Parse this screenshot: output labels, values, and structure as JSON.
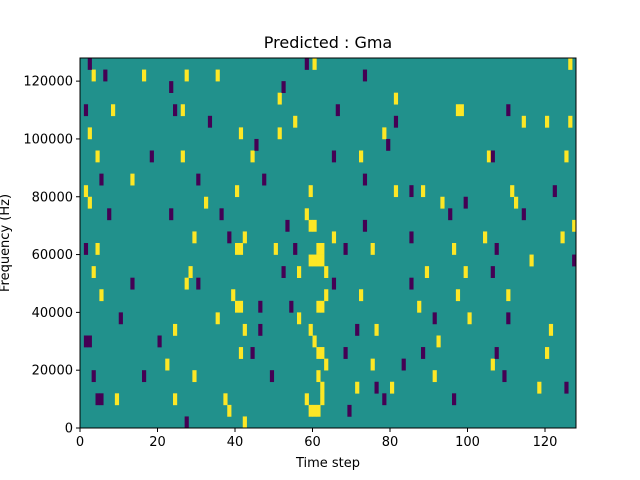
{
  "chart_data": {
    "type": "heatmap",
    "title": "Predicted : Gma",
    "xlabel": "Time step",
    "ylabel": "Frequency (Hz)",
    "xlim": [
      0,
      128
    ],
    "ylim": [
      0,
      128000
    ],
    "x_ticks": [
      0,
      20,
      40,
      60,
      80,
      100,
      120
    ],
    "y_ticks": [
      0,
      20000,
      40000,
      60000,
      80000,
      100000,
      120000
    ],
    "x_tick_labels": [
      "0",
      "20",
      "40",
      "60",
      "80",
      "100",
      "120"
    ],
    "y_tick_labels": [
      "0",
      "20000",
      "40000",
      "60000",
      "80000",
      "100000",
      "120000"
    ],
    "grid": false,
    "bin_height": 4000,
    "colors": {
      "background": "#21918c",
      "high": "#fde725",
      "low": "#440154"
    },
    "cell_values": {
      "background": 0,
      "high": 1,
      "low": -1
    },
    "high_cells": [
      [
        3,
        120000
      ],
      [
        16,
        120000
      ],
      [
        27,
        120000
      ],
      [
        35,
        120000
      ],
      [
        60,
        124000
      ],
      [
        126,
        124000
      ],
      [
        8,
        108000
      ],
      [
        26,
        108000
      ],
      [
        51,
        112000
      ],
      [
        81,
        112000
      ],
      [
        97,
        108000
      ],
      [
        2,
        100000
      ],
      [
        41,
        100000
      ],
      [
        51,
        100000
      ],
      [
        55,
        104000
      ],
      [
        78,
        100000
      ],
      [
        98,
        108000
      ],
      [
        114,
        104000
      ],
      [
        120,
        104000
      ],
      [
        126,
        104000
      ],
      [
        4,
        92000
      ],
      [
        26,
        92000
      ],
      [
        44,
        92000
      ],
      [
        72,
        92000
      ],
      [
        105,
        92000
      ],
      [
        1,
        80000
      ],
      [
        13,
        84000
      ],
      [
        40,
        80000
      ],
      [
        59,
        80000
      ],
      [
        81,
        80000
      ],
      [
        88,
        80000
      ],
      [
        111,
        80000
      ],
      [
        2,
        76000
      ],
      [
        32,
        76000
      ],
      [
        42,
        64000
      ],
      [
        58,
        72000
      ],
      [
        59,
        68000
      ],
      [
        60,
        68000
      ],
      [
        61,
        60000
      ],
      [
        62,
        60000
      ],
      [
        93,
        76000
      ],
      [
        112,
        76000
      ],
      [
        4,
        60000
      ],
      [
        29,
        64000
      ],
      [
        40,
        60000
      ],
      [
        41,
        60000
      ],
      [
        50,
        60000
      ],
      [
        65,
        64000
      ],
      [
        75,
        60000
      ],
      [
        96,
        60000
      ],
      [
        104,
        64000
      ],
      [
        124,
        64000
      ],
      [
        3,
        52000
      ],
      [
        28,
        52000
      ],
      [
        56,
        52000
      ],
      [
        59,
        56000
      ],
      [
        60,
        56000
      ],
      [
        61,
        56000
      ],
      [
        62,
        56000
      ],
      [
        63,
        52000
      ],
      [
        89,
        52000
      ],
      [
        99,
        52000
      ],
      [
        116,
        56000
      ],
      [
        5,
        44000
      ],
      [
        27,
        48000
      ],
      [
        39,
        44000
      ],
      [
        40,
        40000
      ],
      [
        41,
        40000
      ],
      [
        61,
        40000
      ],
      [
        62,
        40000
      ],
      [
        63,
        44000
      ],
      [
        72,
        44000
      ],
      [
        97,
        44000
      ],
      [
        110,
        44000
      ],
      [
        24,
        32000
      ],
      [
        35,
        36000
      ],
      [
        42,
        32000
      ],
      [
        59,
        32000
      ],
      [
        60,
        28000
      ],
      [
        61,
        24000
      ],
      [
        62,
        24000
      ],
      [
        63,
        20000
      ],
      [
        76,
        32000
      ],
      [
        87,
        40000
      ],
      [
        100,
        36000
      ],
      [
        121,
        32000
      ],
      [
        22,
        20000
      ],
      [
        41,
        24000
      ],
      [
        61,
        16000
      ],
      [
        62,
        12000
      ],
      [
        75,
        20000
      ],
      [
        91,
        16000
      ],
      [
        106,
        20000
      ],
      [
        120,
        24000
      ],
      [
        9,
        8000
      ],
      [
        24,
        8000
      ],
      [
        37,
        8000
      ],
      [
        38,
        4000
      ],
      [
        42,
        0
      ],
      [
        58,
        8000
      ],
      [
        59,
        4000
      ],
      [
        60,
        4000
      ],
      [
        61,
        4000
      ],
      [
        62,
        8000
      ],
      [
        71,
        12000
      ],
      [
        80,
        12000
      ],
      [
        118,
        12000
      ],
      [
        125,
        92000
      ],
      [
        127,
        68000
      ],
      [
        29,
        16000
      ],
      [
        56,
        36000
      ],
      [
        92,
        28000
      ]
    ],
    "low_cells": [
      [
        2,
        124000
      ],
      [
        6,
        120000
      ],
      [
        23,
        116000
      ],
      [
        52,
        116000
      ],
      [
        58,
        124000
      ],
      [
        73,
        120000
      ],
      [
        1,
        108000
      ],
      [
        24,
        108000
      ],
      [
        33,
        104000
      ],
      [
        66,
        108000
      ],
      [
        81,
        104000
      ],
      [
        110,
        108000
      ],
      [
        18,
        92000
      ],
      [
        45,
        96000
      ],
      [
        65,
        92000
      ],
      [
        79,
        96000
      ],
      [
        106,
        92000
      ],
      [
        5,
        84000
      ],
      [
        30,
        84000
      ],
      [
        47,
        84000
      ],
      [
        73,
        84000
      ],
      [
        85,
        80000
      ],
      [
        99,
        76000
      ],
      [
        122,
        80000
      ],
      [
        7,
        72000
      ],
      [
        23,
        72000
      ],
      [
        36,
        72000
      ],
      [
        53,
        68000
      ],
      [
        73,
        68000
      ],
      [
        95,
        72000
      ],
      [
        114,
        72000
      ],
      [
        1,
        60000
      ],
      [
        38,
        64000
      ],
      [
        55,
        60000
      ],
      [
        68,
        60000
      ],
      [
        85,
        64000
      ],
      [
        107,
        60000
      ],
      [
        127,
        56000
      ],
      [
        13,
        48000
      ],
      [
        30,
        48000
      ],
      [
        52,
        52000
      ],
      [
        65,
        48000
      ],
      [
        85,
        48000
      ],
      [
        106,
        52000
      ],
      [
        10,
        36000
      ],
      [
        46,
        40000
      ],
      [
        54,
        40000
      ],
      [
        71,
        32000
      ],
      [
        91,
        36000
      ],
      [
        110,
        36000
      ],
      [
        1,
        28000
      ],
      [
        2,
        28000
      ],
      [
        20,
        28000
      ],
      [
        46,
        32000
      ],
      [
        68,
        24000
      ],
      [
        83,
        20000
      ],
      [
        107,
        24000
      ],
      [
        3,
        16000
      ],
      [
        16,
        16000
      ],
      [
        44,
        24000
      ],
      [
        76,
        12000
      ],
      [
        88,
        24000
      ],
      [
        109,
        16000
      ],
      [
        4,
        8000
      ],
      [
        5,
        8000
      ],
      [
        27,
        0
      ],
      [
        49,
        16000
      ],
      [
        69,
        4000
      ],
      [
        78,
        8000
      ],
      [
        96,
        8000
      ],
      [
        125,
        12000
      ]
    ]
  }
}
